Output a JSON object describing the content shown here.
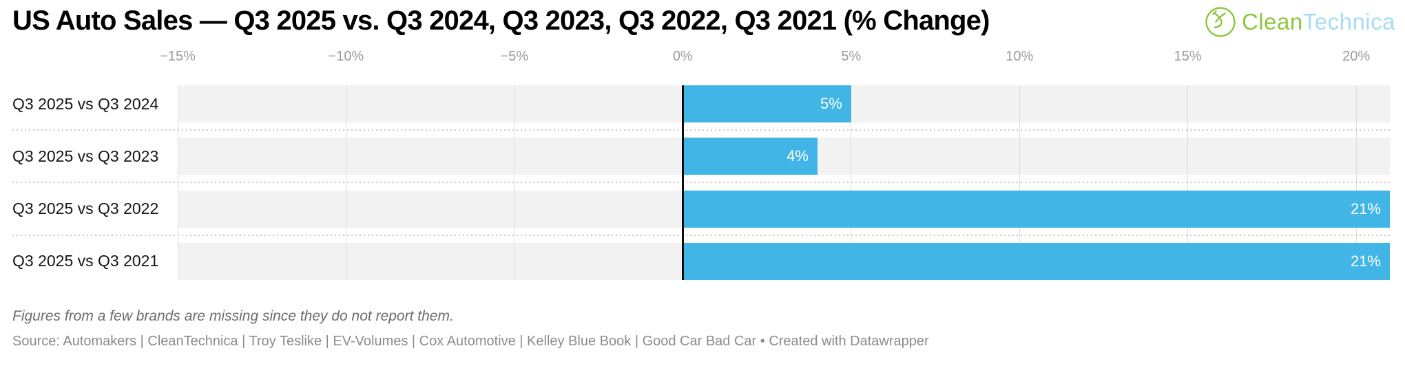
{
  "header": {
    "title": "US Auto Sales — Q3 2025 vs. Q3 2024, Q3 2023, Q3 2022, Q3 2021 (% Change)",
    "logo": {
      "text_primary": "Clean",
      "text_secondary": "Technica",
      "icon": "cleantechnica-sprout-turbine-icon",
      "color_primary": "#8dc63f",
      "color_secondary": "#a6dcf4"
    }
  },
  "chart_data": {
    "type": "bar",
    "orientation": "horizontal",
    "title": "US Auto Sales — Q3 2025 vs. Q3 2024, Q3 2023, Q3 2022, Q3 2021 (% Change)",
    "categories": [
      "Q3 2025 vs Q3 2024",
      "Q3 2025 vs Q3 2023",
      "Q3 2025 vs Q3 2022",
      "Q3 2025 vs Q3 2021"
    ],
    "values": [
      5,
      4,
      21,
      21
    ],
    "value_labels": [
      "5%",
      "4%",
      "21%",
      "21%"
    ],
    "x_ticks": [
      -15,
      -10,
      -5,
      0,
      5,
      10,
      15,
      20
    ],
    "x_tick_labels": [
      "−15%",
      "−10%",
      "−5%",
      "0%",
      "5%",
      "10%",
      "15%",
      "20%"
    ],
    "xlim": [
      -15,
      21
    ],
    "grid": true,
    "zero_baseline": true,
    "legend_position": "none",
    "colors": {
      "bar": "#41b6e6",
      "row_background": "#f2f2f2",
      "gridline": "#dcdcdc",
      "separator": "#c9c9c9",
      "zero_line": "#0d0d0d",
      "axis_label": "#9b9b9b",
      "category_label": "#161616",
      "value_label": "#ffffff"
    }
  },
  "footer": {
    "note": "Figures from a few brands are missing since they do not report them.",
    "source": "Source: Automakers | CleanTechnica | Troy Teslike | EV-Volumes | Cox Automotive | Kelley Blue Book | Good Car Bad Car • Created with Datawrapper"
  }
}
